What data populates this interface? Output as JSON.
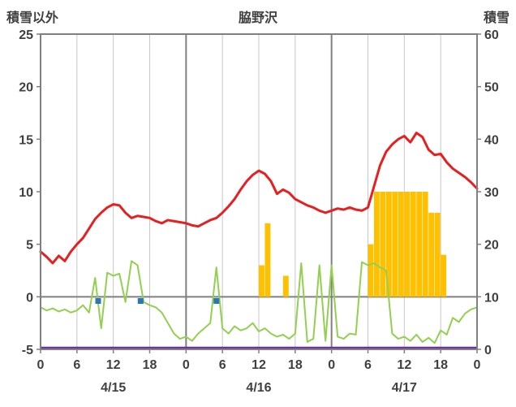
{
  "chart_data": {
    "type": "combo",
    "title": "脇野沢",
    "left_axis": {
      "title": "積雪以外",
      "min": -5,
      "max": 25,
      "ticks": [
        25,
        20,
        15,
        10,
        5,
        0,
        -5
      ]
    },
    "right_axis": {
      "title": "積雪",
      "min": 0,
      "max": 60,
      "ticks": [
        60,
        50,
        40,
        30,
        20,
        10,
        0
      ]
    },
    "x_axis": {
      "min": 0,
      "max": 72,
      "tick_step": 6,
      "tick_labels": [
        "0",
        "6",
        "12",
        "18",
        "0",
        "6",
        "12",
        "18",
        "0",
        "6",
        "12",
        "18",
        "0"
      ],
      "day_labels": [
        "4/15",
        "4/16",
        "4/17"
      ],
      "day_centers": [
        12,
        36,
        60
      ],
      "day_boundaries": [
        24,
        48
      ],
      "grid": true
    },
    "colors": {
      "border": "#808080",
      "grid_minor": "#c8c8c8",
      "grid_major": "#808080",
      "axis_text": "#404040",
      "temperature": "#e62020",
      "green": "#92d050",
      "bars": "#ffc000",
      "purple": "#7030a0",
      "blue": "#2e75b6",
      "background": "#ffffff"
    },
    "series": {
      "temperature_line": {
        "name": "temperature-red-line",
        "type": "line",
        "axis": "left",
        "color": "#e62020",
        "x": [
          0,
          1,
          2,
          3,
          4,
          5,
          6,
          7,
          8,
          9,
          10,
          11,
          12,
          13,
          14,
          15,
          16,
          17,
          18,
          19,
          20,
          21,
          22,
          23,
          24,
          25,
          26,
          27,
          28,
          29,
          30,
          31,
          32,
          33,
          34,
          35,
          36,
          37,
          38,
          39,
          40,
          41,
          42,
          43,
          44,
          45,
          46,
          47,
          48,
          49,
          50,
          51,
          52,
          53,
          54,
          55,
          56,
          57,
          58,
          59,
          60,
          61,
          62,
          63,
          64,
          65,
          66,
          67,
          68,
          69,
          70,
          71,
          72
        ],
        "values": [
          4.3,
          3.8,
          3.2,
          3.9,
          3.4,
          4.3,
          5.0,
          5.6,
          6.5,
          7.4,
          8.0,
          8.5,
          8.8,
          8.7,
          8.0,
          7.5,
          7.7,
          7.6,
          7.5,
          7.2,
          7.0,
          7.3,
          7.2,
          7.1,
          7.0,
          6.8,
          6.7,
          7.0,
          7.3,
          7.5,
          8.0,
          8.6,
          9.3,
          10.2,
          11.0,
          11.6,
          12.0,
          11.7,
          11.0,
          9.8,
          10.2,
          9.9,
          9.3,
          9.0,
          8.7,
          8.5,
          8.2,
          8.0,
          8.2,
          8.4,
          8.3,
          8.5,
          8.3,
          8.2,
          8.5,
          10.5,
          12.5,
          13.8,
          14.5,
          15.0,
          15.3,
          14.7,
          15.6,
          15.2,
          14.0,
          13.5,
          13.6,
          12.8,
          12.2,
          11.8,
          11.4,
          10.9,
          10.3
        ]
      },
      "green_line": {
        "name": "green-line",
        "type": "line",
        "axis": "left",
        "color": "#92d050",
        "x": [
          0,
          1,
          2,
          3,
          4,
          5,
          6,
          7,
          8,
          9,
          10,
          11,
          12,
          13,
          14,
          15,
          16,
          17,
          18,
          19,
          20,
          21,
          22,
          23,
          24,
          25,
          26,
          27,
          28,
          29,
          30,
          31,
          32,
          33,
          34,
          35,
          36,
          37,
          38,
          39,
          40,
          41,
          42,
          43,
          44,
          45,
          46,
          47,
          48,
          49,
          50,
          51,
          52,
          53,
          54,
          55,
          56,
          57,
          58,
          59,
          60,
          61,
          62,
          63,
          64,
          65,
          66,
          67,
          68,
          69,
          70,
          71,
          72
        ],
        "values": [
          -1.0,
          -1.3,
          -1.1,
          -1.4,
          -1.2,
          -1.5,
          -1.3,
          -0.8,
          -1.5,
          1.8,
          -3.0,
          2.3,
          2.0,
          2.2,
          -0.5,
          3.4,
          3.0,
          -0.5,
          -0.8,
          -1.0,
          -1.5,
          -2.5,
          -3.5,
          -4.0,
          -3.8,
          -4.2,
          -3.5,
          -3.0,
          -2.5,
          2.8,
          -3.0,
          -3.5,
          -2.8,
          -3.2,
          -3.0,
          -2.5,
          -3.3,
          -3.0,
          -3.5,
          -3.8,
          -3.6,
          -4.0,
          -3.5,
          3.2,
          -4.3,
          -4.0,
          3.0,
          -4.2,
          3.0,
          -3.8,
          -4.0,
          -3.5,
          -3.6,
          3.3,
          3.0,
          3.2,
          2.8,
          2.5,
          -3.5,
          -4.0,
          -3.8,
          -4.2,
          -3.6,
          -4.3,
          -3.9,
          -4.4,
          -3.2,
          -3.6,
          -2.0,
          -2.4,
          -1.6,
          -1.2,
          -1.0
        ]
      },
      "snow_bars": {
        "name": "snow-bars",
        "type": "bar",
        "axis": "left",
        "base": 0,
        "color": "#ffc000",
        "x": [
          36,
          37,
          40,
          54,
          55,
          56,
          57,
          58,
          59,
          60,
          61,
          62,
          63,
          64,
          65,
          66
        ],
        "values": [
          3,
          7,
          2,
          5,
          10,
          10,
          10,
          10,
          10,
          10,
          10,
          10,
          10,
          8,
          8,
          4
        ]
      },
      "blue_markers": {
        "name": "blue-markers",
        "type": "point",
        "axis": "left",
        "color": "#2e75b6",
        "x": [
          9.5,
          16.5,
          29
        ],
        "values": [
          -0.4,
          -0.4,
          -0.4
        ]
      },
      "purple_baseline": {
        "name": "purple-baseline",
        "type": "hline",
        "axis": "left",
        "color": "#7030a0",
        "value": -5
      }
    }
  }
}
